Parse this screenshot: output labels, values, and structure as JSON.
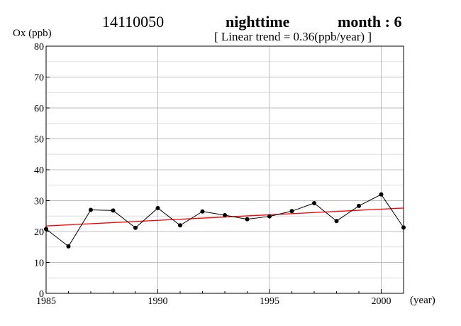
{
  "header": {
    "station": "14110050",
    "period": "nighttime",
    "month": "month : 6",
    "trend": "[ Linear trend = 0.36(ppb/year) ]"
  },
  "chart_data": {
    "type": "line",
    "ylabel": "Ox (ppb)",
    "xlabel": "(year)",
    "xlim": [
      1985,
      2001
    ],
    "ylim": [
      0,
      80
    ],
    "xticks": [
      1985,
      1990,
      1995,
      2000
    ],
    "yticks": [
      0,
      10,
      20,
      30,
      40,
      50,
      60,
      70,
      80
    ],
    "grid": true,
    "series": [
      {
        "x": [
          1985,
          1986,
          1987,
          1988,
          1989,
          1990,
          1991,
          1992,
          1993,
          1994,
          1995,
          1996,
          1997,
          1998,
          1999,
          2000,
          2001
        ],
        "values": [
          20.8,
          15.2,
          27.0,
          26.8,
          21.2,
          27.6,
          22.0,
          26.5,
          25.3,
          24.0,
          24.9,
          26.6,
          29.2,
          23.4,
          28.3,
          32.0,
          21.3
        ],
        "color": "#000000"
      }
    ],
    "trendline": {
      "slope": 0.36,
      "x": [
        1985,
        2001
      ],
      "values": [
        21.8,
        27.6
      ],
      "color": "#ff0000"
    }
  }
}
